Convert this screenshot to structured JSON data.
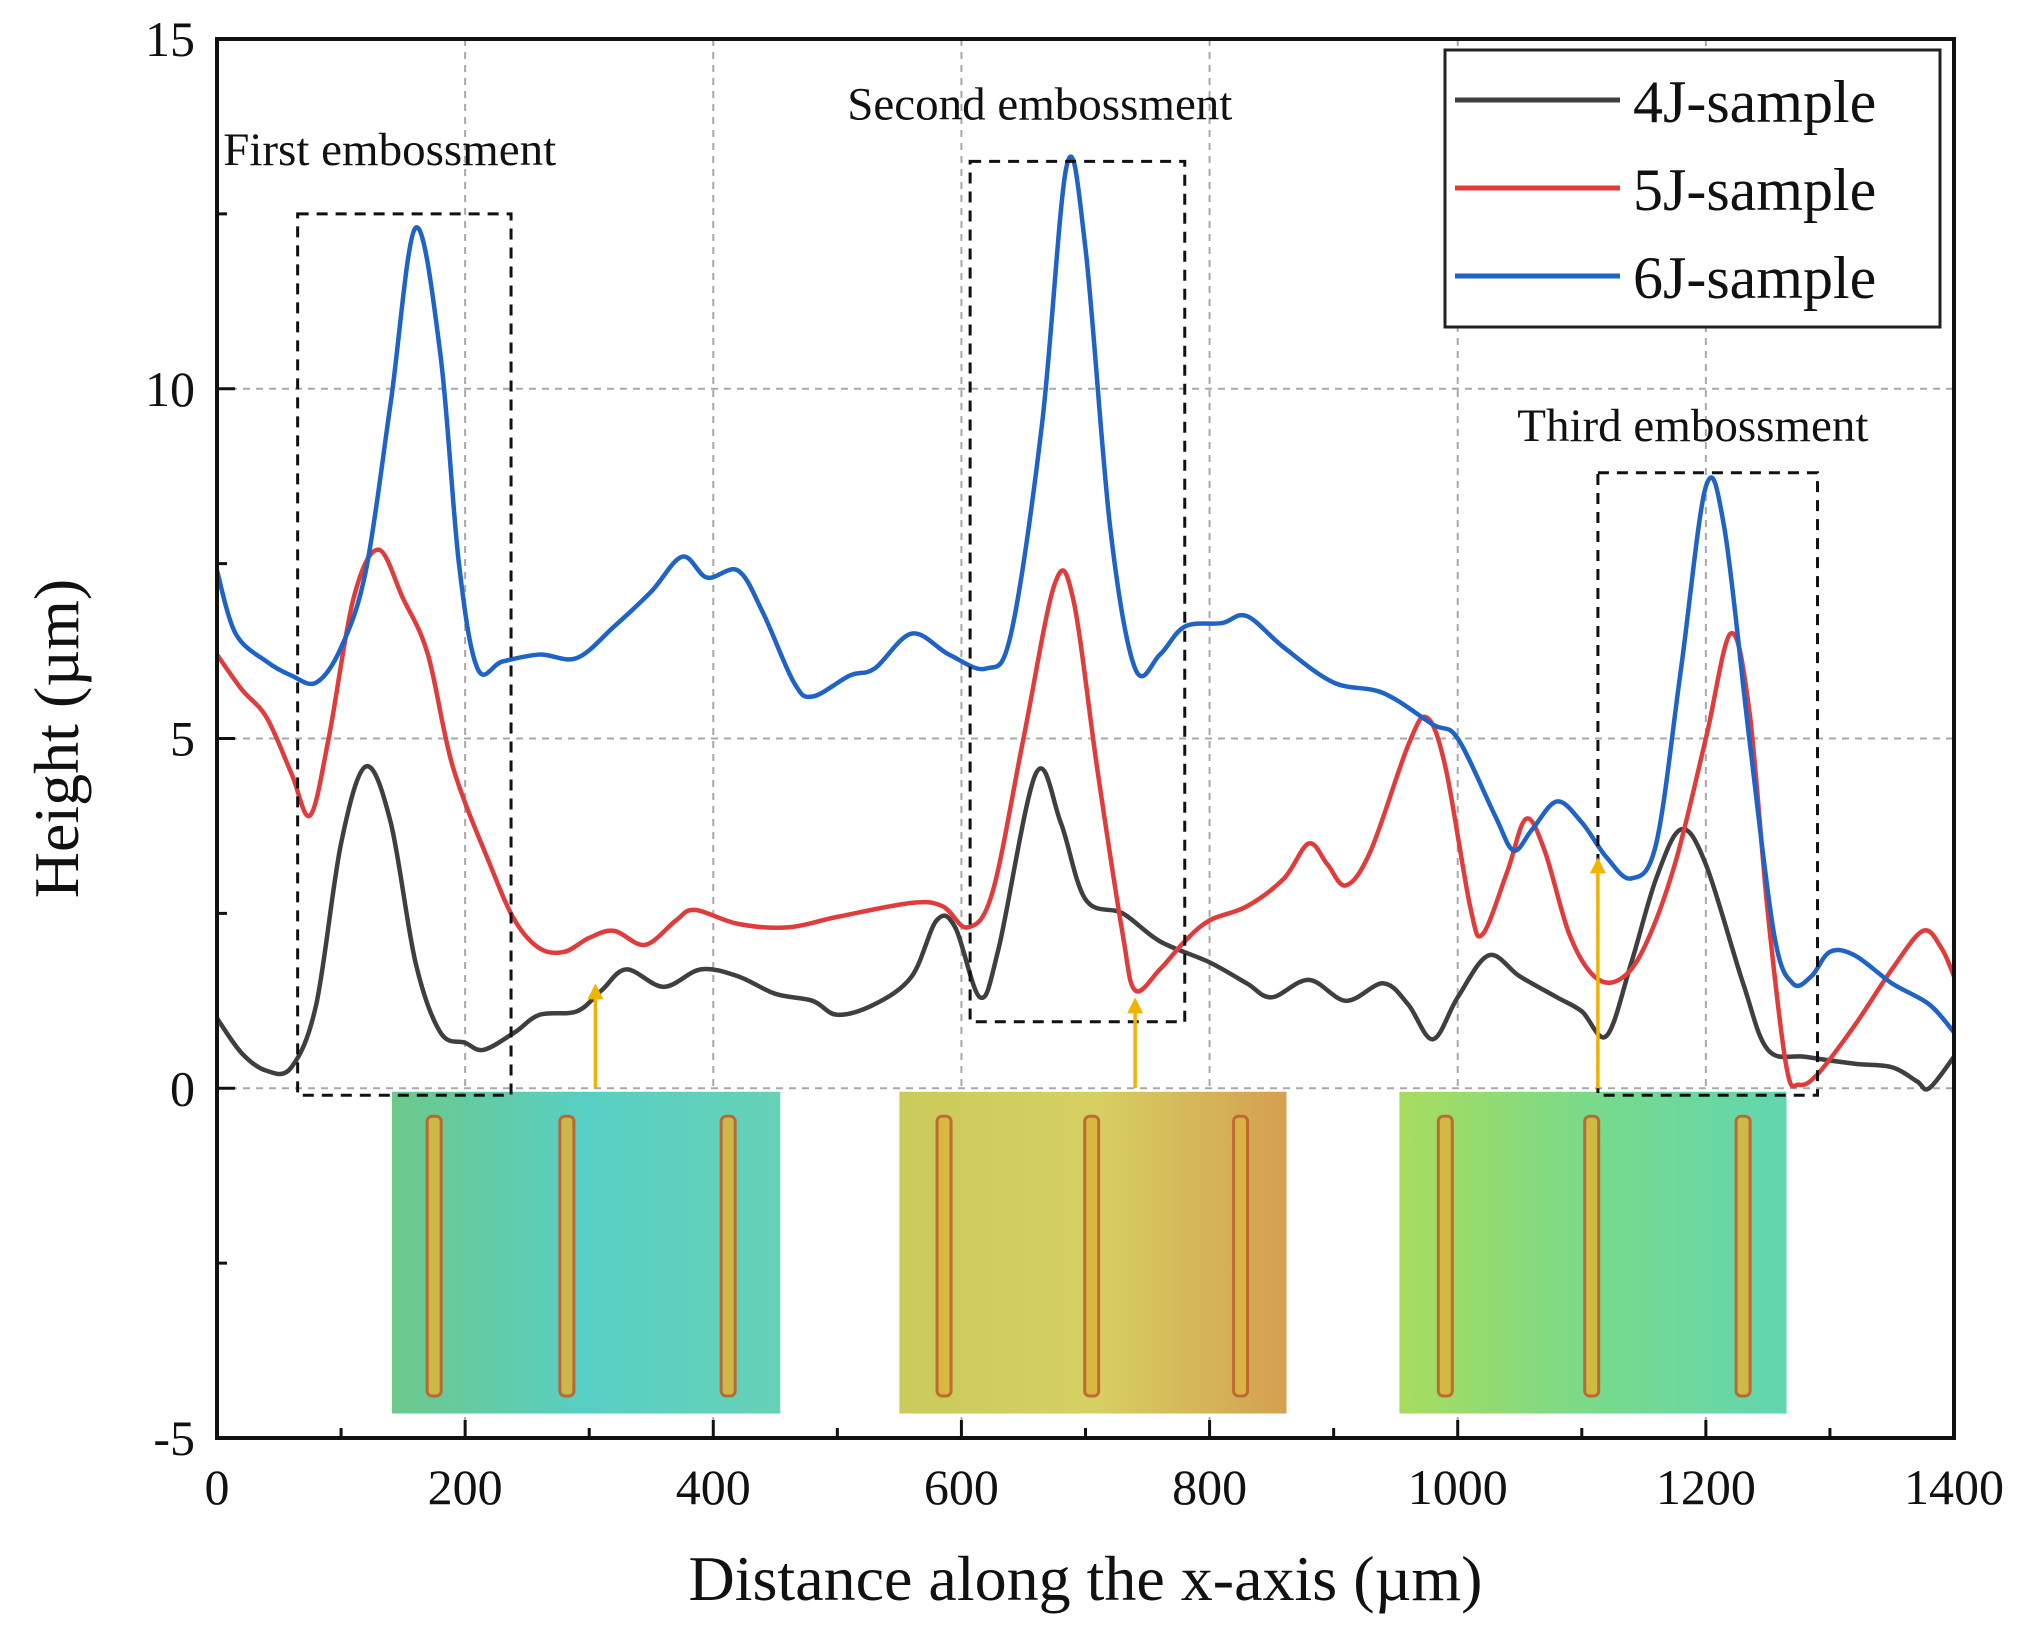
{
  "chart_data": {
    "type": "line",
    "title": "",
    "xlabel": "Distance along the x-axis (µm)",
    "ylabel": "Height (µm)",
    "xlim": [
      0,
      1400
    ],
    "ylim": [
      -5,
      15
    ],
    "xticks": [
      0,
      200,
      400,
      600,
      800,
      1000,
      1200,
      1400
    ],
    "xtick_labels": [
      "0",
      "200",
      "400",
      "600",
      "800",
      "1000",
      "1200",
      "1400"
    ],
    "yticks": [
      -5,
      0,
      5,
      10,
      15
    ],
    "ytick_labels": [
      "-5",
      "0",
      "5",
      "10",
      "15"
    ],
    "grid": true,
    "legend_position": "top-right",
    "series": [
      {
        "name": "4J-sample",
        "color": "#3f3f3f",
        "points": [
          [
            0,
            1.0
          ],
          [
            20,
            0.5
          ],
          [
            40,
            0.25
          ],
          [
            60,
            0.3
          ],
          [
            80,
            1.2
          ],
          [
            100,
            3.5
          ],
          [
            120,
            4.6
          ],
          [
            140,
            3.8
          ],
          [
            160,
            1.8
          ],
          [
            180,
            0.8
          ],
          [
            200,
            0.65
          ],
          [
            215,
            0.55
          ],
          [
            240,
            0.8
          ],
          [
            260,
            1.05
          ],
          [
            290,
            1.1
          ],
          [
            310,
            1.4
          ],
          [
            330,
            1.7
          ],
          [
            360,
            1.45
          ],
          [
            390,
            1.7
          ],
          [
            420,
            1.6
          ],
          [
            450,
            1.35
          ],
          [
            480,
            1.25
          ],
          [
            500,
            1.05
          ],
          [
            530,
            1.2
          ],
          [
            560,
            1.6
          ],
          [
            580,
            2.4
          ],
          [
            595,
            2.3
          ],
          [
            615,
            1.3
          ],
          [
            630,
            2.0
          ],
          [
            660,
            4.5
          ],
          [
            680,
            3.8
          ],
          [
            700,
            2.7
          ],
          [
            730,
            2.5
          ],
          [
            760,
            2.1
          ],
          [
            800,
            1.8
          ],
          [
            830,
            1.5
          ],
          [
            850,
            1.3
          ],
          [
            880,
            1.55
          ],
          [
            910,
            1.25
          ],
          [
            940,
            1.5
          ],
          [
            960,
            1.2
          ],
          [
            980,
            0.7
          ],
          [
            1000,
            1.3
          ],
          [
            1025,
            1.9
          ],
          [
            1050,
            1.6
          ],
          [
            1080,
            1.3
          ],
          [
            1100,
            1.1
          ],
          [
            1120,
            0.75
          ],
          [
            1140,
            1.8
          ],
          [
            1160,
            3.0
          ],
          [
            1180,
            3.7
          ],
          [
            1200,
            3.2
          ],
          [
            1230,
            1.5
          ],
          [
            1250,
            0.55
          ],
          [
            1280,
            0.45
          ],
          [
            1320,
            0.35
          ],
          [
            1350,
            0.3
          ],
          [
            1370,
            0.1
          ],
          [
            1380,
            0.0
          ],
          [
            1400,
            0.45
          ]
        ]
      },
      {
        "name": "5J-sample",
        "color": "#e03c3c",
        "points": [
          [
            0,
            6.2
          ],
          [
            20,
            5.7
          ],
          [
            40,
            5.3
          ],
          [
            60,
            4.5
          ],
          [
            75,
            3.9
          ],
          [
            90,
            5.0
          ],
          [
            110,
            7.0
          ],
          [
            130,
            7.7
          ],
          [
            150,
            7.0
          ],
          [
            170,
            6.2
          ],
          [
            190,
            4.6
          ],
          [
            220,
            3.2
          ],
          [
            240,
            2.4
          ],
          [
            260,
            2.0
          ],
          [
            280,
            1.95
          ],
          [
            300,
            2.15
          ],
          [
            320,
            2.25
          ],
          [
            345,
            2.05
          ],
          [
            370,
            2.4
          ],
          [
            385,
            2.55
          ],
          [
            420,
            2.35
          ],
          [
            460,
            2.3
          ],
          [
            500,
            2.45
          ],
          [
            560,
            2.65
          ],
          [
            585,
            2.6
          ],
          [
            605,
            2.3
          ],
          [
            625,
            2.8
          ],
          [
            650,
            5.0
          ],
          [
            675,
            7.2
          ],
          [
            690,
            7.0
          ],
          [
            710,
            4.5
          ],
          [
            730,
            2.2
          ],
          [
            740,
            1.4
          ],
          [
            760,
            1.7
          ],
          [
            780,
            2.1
          ],
          [
            800,
            2.4
          ],
          [
            830,
            2.6
          ],
          [
            860,
            3.0
          ],
          [
            880,
            3.5
          ],
          [
            895,
            3.2
          ],
          [
            910,
            2.9
          ],
          [
            930,
            3.4
          ],
          [
            960,
            4.9
          ],
          [
            975,
            5.3
          ],
          [
            990,
            4.6
          ],
          [
            1010,
            2.6
          ],
          [
            1020,
            2.2
          ],
          [
            1040,
            3.1
          ],
          [
            1055,
            3.85
          ],
          [
            1070,
            3.4
          ],
          [
            1090,
            2.2
          ],
          [
            1110,
            1.6
          ],
          [
            1130,
            1.55
          ],
          [
            1150,
            2.0
          ],
          [
            1175,
            3.2
          ],
          [
            1200,
            5.0
          ],
          [
            1220,
            6.5
          ],
          [
            1235,
            5.4
          ],
          [
            1250,
            2.5
          ],
          [
            1265,
            0.3
          ],
          [
            1275,
            0.05
          ],
          [
            1290,
            0.2
          ],
          [
            1320,
            0.9
          ],
          [
            1350,
            1.7
          ],
          [
            1375,
            2.25
          ],
          [
            1390,
            2.0
          ],
          [
            1400,
            1.6
          ]
        ]
      },
      {
        "name": "6J-sample",
        "color": "#1f63c6",
        "points": [
          [
            0,
            7.4
          ],
          [
            15,
            6.5
          ],
          [
            40,
            6.1
          ],
          [
            60,
            5.9
          ],
          [
            80,
            5.8
          ],
          [
            100,
            6.3
          ],
          [
            120,
            7.4
          ],
          [
            140,
            9.8
          ],
          [
            160,
            12.3
          ],
          [
            180,
            10.5
          ],
          [
            195,
            7.5
          ],
          [
            210,
            6.0
          ],
          [
            230,
            6.1
          ],
          [
            260,
            6.2
          ],
          [
            290,
            6.15
          ],
          [
            320,
            6.6
          ],
          [
            350,
            7.1
          ],
          [
            375,
            7.6
          ],
          [
            395,
            7.3
          ],
          [
            420,
            7.4
          ],
          [
            440,
            6.8
          ],
          [
            465,
            5.8
          ],
          [
            480,
            5.6
          ],
          [
            510,
            5.9
          ],
          [
            530,
            6.0
          ],
          [
            560,
            6.5
          ],
          [
            590,
            6.2
          ],
          [
            620,
            6.0
          ],
          [
            640,
            6.5
          ],
          [
            665,
            9.5
          ],
          [
            685,
            13.2
          ],
          [
            700,
            12.0
          ],
          [
            720,
            8.0
          ],
          [
            740,
            6.0
          ],
          [
            760,
            6.2
          ],
          [
            780,
            6.6
          ],
          [
            810,
            6.65
          ],
          [
            830,
            6.75
          ],
          [
            860,
            6.3
          ],
          [
            900,
            5.8
          ],
          [
            940,
            5.65
          ],
          [
            980,
            5.2
          ],
          [
            1000,
            5.0
          ],
          [
            1030,
            3.9
          ],
          [
            1045,
            3.4
          ],
          [
            1060,
            3.7
          ],
          [
            1080,
            4.1
          ],
          [
            1100,
            3.8
          ],
          [
            1120,
            3.3
          ],
          [
            1140,
            3.0
          ],
          [
            1160,
            3.5
          ],
          [
            1180,
            6.0
          ],
          [
            1200,
            8.6
          ],
          [
            1215,
            8.0
          ],
          [
            1235,
            5.0
          ],
          [
            1255,
            2.2
          ],
          [
            1270,
            1.5
          ],
          [
            1285,
            1.6
          ],
          [
            1300,
            1.95
          ],
          [
            1320,
            1.9
          ],
          [
            1350,
            1.5
          ],
          [
            1380,
            1.2
          ],
          [
            1400,
            0.8
          ]
        ]
      }
    ],
    "annotations": [
      {
        "text": "First embossment",
        "box_x": [
          65,
          237
        ],
        "box_y": [
          -0.1,
          12.5
        ],
        "label_at": [
          5,
          13.2
        ]
      },
      {
        "text": "Second embossment",
        "box_x": [
          607,
          780
        ],
        "box_y": [
          0.95,
          13.25
        ],
        "label_at": [
          508,
          13.85
        ]
      },
      {
        "text": "Third embossment",
        "box_x": [
          1113,
          1290
        ],
        "box_y": [
          -0.1,
          8.8
        ],
        "label_at": [
          1048,
          9.25
        ]
      }
    ],
    "arrows": [
      {
        "x": 305,
        "from": 0,
        "to": 1.5,
        "color": "#f0b400"
      },
      {
        "x": 740,
        "from": 0,
        "to": 1.3,
        "color": "#f0b400"
      },
      {
        "x": 1113,
        "from": 0,
        "to": 3.3,
        "color": "#f0b400"
      }
    ],
    "insets": [
      {
        "x": [
          141,
          454
        ],
        "y": [
          -4.65,
          -0.05
        ],
        "colors": [
          "#6cc98a",
          "#58cfc4",
          "#66d2b6"
        ],
        "stripes": [
          175,
          282,
          412
        ]
      },
      {
        "x": [
          550,
          862
        ],
        "y": [
          -4.65,
          -0.05
        ],
        "colors": [
          "#c9cb5a",
          "#d6d062",
          "#d4a050"
        ],
        "stripes": [
          586,
          705,
          825
        ]
      },
      {
        "x": [
          953,
          1265
        ],
        "y": [
          -4.65,
          -0.05
        ],
        "colors": [
          "#a8dc5e",
          "#78da8a",
          "#62d6b0"
        ],
        "stripes": [
          990,
          1108,
          1230
        ]
      }
    ]
  }
}
